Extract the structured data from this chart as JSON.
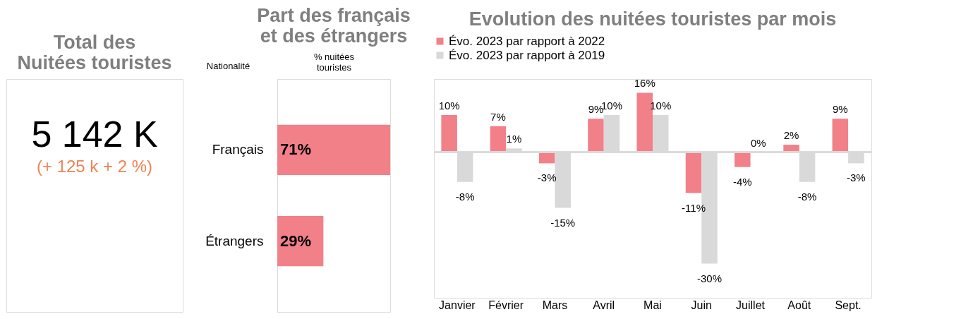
{
  "chart_data": [
    {
      "type": "other",
      "title": "Total des\nNuitées touristes",
      "annotations": [
        "5 142 K",
        "(+ 125 k   + 2 %)"
      ]
    },
    {
      "type": "bar",
      "orientation": "horizontal",
      "title": "Part des français\net des étrangers",
      "ylabel": "Nationalité",
      "xlabel": "% nuitées\ntouristes",
      "categories": [
        "Français",
        "Étrangers"
      ],
      "values": [
        71,
        29
      ],
      "value_labels": [
        "71%",
        "29%"
      ],
      "color": "#f28089"
    },
    {
      "type": "bar",
      "title": "Evolution des nuitées touristes par mois",
      "legend": "top left",
      "categories": [
        "Janvier",
        "Février",
        "Mars",
        "Avril",
        "Mai",
        "Juin",
        "Juillet",
        "Août",
        "Sept."
      ],
      "series": [
        {
          "name": "Évo. 2023 par rapport à 2022",
          "color": "#f28089",
          "values": [
            10,
            7,
            -3,
            9,
            16,
            -11,
            -4,
            2,
            9
          ],
          "value_labels": [
            "10%",
            "7%",
            "-3%",
            "9%",
            "16%",
            "-11%",
            "-4%",
            "2%",
            "9%"
          ]
        },
        {
          "name": "Évo. 2023 par rapport à 2019",
          "color": "#d9d9d9",
          "values": [
            -8,
            1,
            -15,
            10,
            10,
            -30,
            0,
            -8,
            -3
          ],
          "value_labels": [
            "-8%",
            "1%",
            "-15%",
            "10%",
            "10%",
            "-30%",
            "0%",
            "-8%",
            "-3%"
          ]
        }
      ]
    }
  ]
}
